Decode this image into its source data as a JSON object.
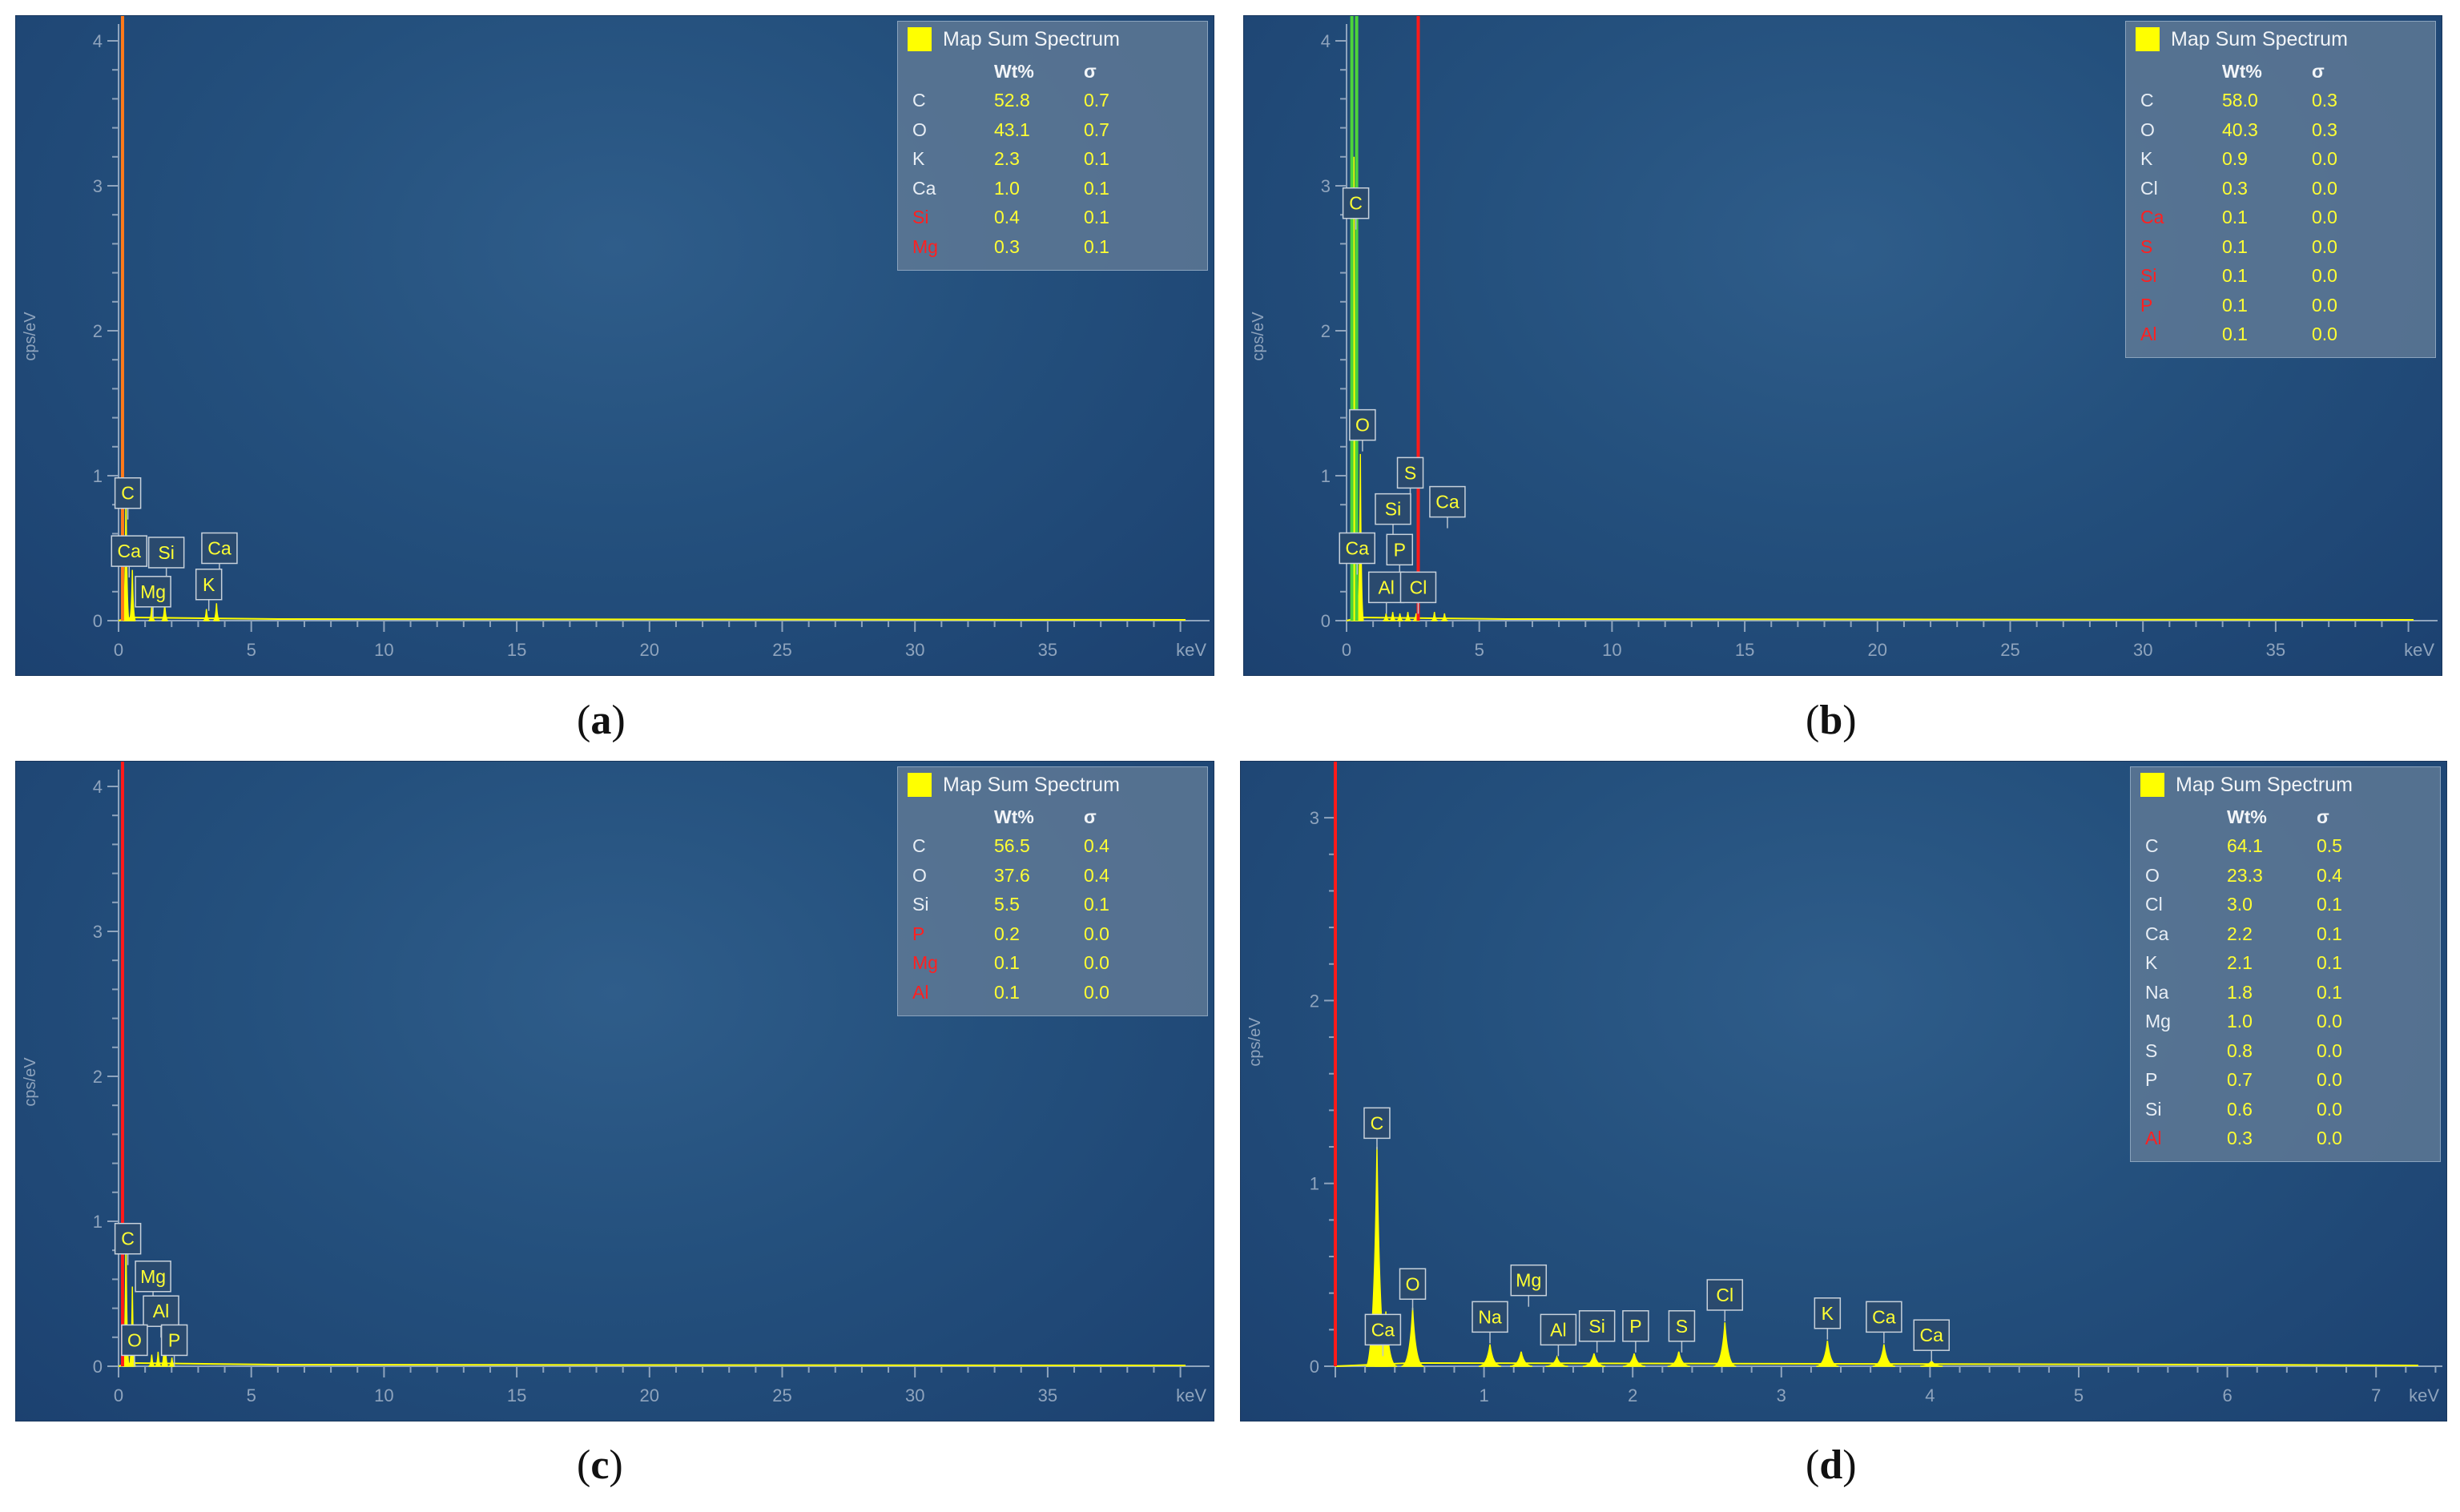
{
  "colors": {
    "background": "#24507d",
    "spectrum": "#ffff00",
    "axis": "#8fa4bd",
    "legend_red": "#ff2020",
    "marker_red": "#ff1a1a",
    "marker_orange": "#ff7a1a",
    "marker_green": "#4cd43a"
  },
  "chart_data": [
    {
      "type": "line",
      "panel_label": "a",
      "legend_title": "Map Sum Spectrum",
      "legend_headers": [
        "Wt%",
        "σ"
      ],
      "legend_rows": [
        {
          "el": "C",
          "wt": "52.8",
          "sigma": "0.7",
          "red": false
        },
        {
          "el": "O",
          "wt": "43.1",
          "sigma": "0.7",
          "red": false
        },
        {
          "el": "K",
          "wt": "2.3",
          "sigma": "0.1",
          "red": false
        },
        {
          "el": "Ca",
          "wt": "1.0",
          "sigma": "0.1",
          "red": false
        },
        {
          "el": "Si",
          "wt": "0.4",
          "sigma": "0.1",
          "red": true
        },
        {
          "el": "Mg",
          "wt": "0.3",
          "sigma": "0.1",
          "red": true
        }
      ],
      "ylabel": "cps/eV",
      "xunit": "keV",
      "xlim": [
        0,
        40
      ],
      "ylim": [
        0,
        4
      ],
      "xticks": [
        "0",
        "5",
        "10",
        "15",
        "20",
        "25",
        "30",
        "35"
      ],
      "yticks": [
        "0",
        "1",
        "2",
        "3",
        "4"
      ],
      "spectrum": [
        [
          0.28,
          0.95
        ],
        [
          0.52,
          0.35
        ],
        [
          1.25,
          0.1
        ],
        [
          1.74,
          0.12
        ],
        [
          3.31,
          0.08
        ],
        [
          3.69,
          0.12
        ]
      ],
      "markers": [
        {
          "x": 0.15,
          "color": "orange"
        }
      ],
      "peak_labels": [
        {
          "text": "C",
          "x": 0.35,
          "y": 0.88
        },
        {
          "text": "Ca",
          "x": 0.4,
          "y": 0.48
        },
        {
          "text": "Si",
          "x": 1.8,
          "y": 0.47
        },
        {
          "text": "Ca",
          "x": 3.8,
          "y": 0.5
        },
        {
          "text": "Mg",
          "x": 1.3,
          "y": 0.2
        },
        {
          "text": "K",
          "x": 3.4,
          "y": 0.25
        }
      ]
    },
    {
      "type": "line",
      "panel_label": "b",
      "legend_title": "Map Sum Spectrum",
      "legend_headers": [
        "Wt%",
        "σ"
      ],
      "legend_rows": [
        {
          "el": "C",
          "wt": "58.0",
          "sigma": "0.3",
          "red": false
        },
        {
          "el": "O",
          "wt": "40.3",
          "sigma": "0.3",
          "red": false
        },
        {
          "el": "K",
          "wt": "0.9",
          "sigma": "0.0",
          "red": false
        },
        {
          "el": "Cl",
          "wt": "0.3",
          "sigma": "0.0",
          "red": false
        },
        {
          "el": "Ca",
          "wt": "0.1",
          "sigma": "0.0",
          "red": true
        },
        {
          "el": "S",
          "wt": "0.1",
          "sigma": "0.0",
          "red": true
        },
        {
          "el": "Si",
          "wt": "0.1",
          "sigma": "0.0",
          "red": true
        },
        {
          "el": "P",
          "wt": "0.1",
          "sigma": "0.0",
          "red": true
        },
        {
          "el": "Al",
          "wt": "0.1",
          "sigma": "0.0",
          "red": true
        }
      ],
      "ylabel": "cps/eV",
      "xunit": "keV",
      "xlim": [
        0,
        40
      ],
      "ylim": [
        0,
        4
      ],
      "xticks": [
        "0",
        "5",
        "10",
        "15",
        "20",
        "25",
        "30",
        "35"
      ],
      "yticks": [
        "0",
        "1",
        "2",
        "3",
        "4"
      ],
      "spectrum": [
        [
          0.28,
          3.2
        ],
        [
          0.52,
          1.15
        ],
        [
          1.49,
          0.05
        ],
        [
          1.74,
          0.06
        ],
        [
          2.01,
          0.05
        ],
        [
          2.31,
          0.06
        ],
        [
          2.62,
          0.05
        ],
        [
          3.31,
          0.06
        ],
        [
          3.69,
          0.05
        ]
      ],
      "markers": [
        {
          "x": 0.2,
          "color": "green"
        },
        {
          "x": 0.38,
          "color": "green"
        },
        {
          "x": 2.7,
          "color": "red"
        }
      ],
      "peak_labels": [
        {
          "text": "C",
          "x": 0.35,
          "y": 2.88
        },
        {
          "text": "O",
          "x": 0.6,
          "y": 1.35
        },
        {
          "text": "S",
          "x": 2.4,
          "y": 1.02
        },
        {
          "text": "Ca",
          "x": 3.8,
          "y": 0.82
        },
        {
          "text": "Si",
          "x": 1.75,
          "y": 0.77
        },
        {
          "text": "Ca",
          "x": 0.4,
          "y": 0.5
        },
        {
          "text": "P",
          "x": 2.0,
          "y": 0.49
        },
        {
          "text": "Al",
          "x": 1.5,
          "y": 0.23
        },
        {
          "text": "Cl",
          "x": 2.7,
          "y": 0.23
        }
      ]
    },
    {
      "type": "line",
      "panel_label": "c",
      "legend_title": "Map Sum Spectrum",
      "legend_headers": [
        "Wt%",
        "σ"
      ],
      "legend_rows": [
        {
          "el": "C",
          "wt": "56.5",
          "sigma": "0.4",
          "red": false
        },
        {
          "el": "O",
          "wt": "37.6",
          "sigma": "0.4",
          "red": false
        },
        {
          "el": "Si",
          "wt": "5.5",
          "sigma": "0.1",
          "red": false
        },
        {
          "el": "P",
          "wt": "0.2",
          "sigma": "0.0",
          "red": true
        },
        {
          "el": "Mg",
          "wt": "0.1",
          "sigma": "0.0",
          "red": true
        },
        {
          "el": "Al",
          "wt": "0.1",
          "sigma": "0.0",
          "red": true
        }
      ],
      "ylabel": "cps/eV",
      "xunit": "keV",
      "xlim": [
        0,
        40
      ],
      "ylim": [
        0,
        4
      ],
      "xticks": [
        "0",
        "5",
        "10",
        "15",
        "20",
        "25",
        "30",
        "35"
      ],
      "yticks": [
        "0",
        "1",
        "2",
        "3",
        "4"
      ],
      "spectrum": [
        [
          0.28,
          0.95
        ],
        [
          0.52,
          0.55
        ],
        [
          1.25,
          0.08
        ],
        [
          1.49,
          0.1
        ],
        [
          1.74,
          0.3
        ],
        [
          2.01,
          0.06
        ]
      ],
      "markers": [
        {
          "x": 0.15,
          "color": "red"
        }
      ],
      "peak_labels": [
        {
          "text": "C",
          "x": 0.35,
          "y": 0.88
        },
        {
          "text": "Mg",
          "x": 1.3,
          "y": 0.62
        },
        {
          "text": "Al",
          "x": 1.6,
          "y": 0.38
        },
        {
          "text": "O",
          "x": 0.6,
          "y": 0.18
        },
        {
          "text": "P",
          "x": 2.1,
          "y": 0.18
        }
      ]
    },
    {
      "type": "line",
      "panel_label": "d",
      "legend_title": "Map Sum Spectrum",
      "legend_headers": [
        "Wt%",
        "σ"
      ],
      "legend_rows": [
        {
          "el": "C",
          "wt": "64.1",
          "sigma": "0.5",
          "red": false
        },
        {
          "el": "O",
          "wt": "23.3",
          "sigma": "0.4",
          "red": false
        },
        {
          "el": "Cl",
          "wt": "3.0",
          "sigma": "0.1",
          "red": false
        },
        {
          "el": "Ca",
          "wt": "2.2",
          "sigma": "0.1",
          "red": false
        },
        {
          "el": "K",
          "wt": "2.1",
          "sigma": "0.1",
          "red": false
        },
        {
          "el": "Na",
          "wt": "1.8",
          "sigma": "0.1",
          "red": false
        },
        {
          "el": "Mg",
          "wt": "1.0",
          "sigma": "0.0",
          "red": false
        },
        {
          "el": "S",
          "wt": "0.8",
          "sigma": "0.0",
          "red": false
        },
        {
          "el": "P",
          "wt": "0.7",
          "sigma": "0.0",
          "red": false
        },
        {
          "el": "Si",
          "wt": "0.6",
          "sigma": "0.0",
          "red": false
        },
        {
          "el": "Al",
          "wt": "0.3",
          "sigma": "0.0",
          "red": true
        }
      ],
      "ylabel": "cps/eV",
      "xunit": "keV",
      "xlim": [
        0,
        8
      ],
      "ylim": [
        0,
        3
      ],
      "xticks": [
        "1",
        "2",
        "3",
        "4",
        "5",
        "6",
        "7"
      ],
      "yticks": [
        "0",
        "1",
        "2",
        "3"
      ],
      "spectrum": [
        [
          0.28,
          1.2
        ],
        [
          0.34,
          0.3
        ],
        [
          0.52,
          0.32
        ],
        [
          1.04,
          0.12
        ],
        [
          1.25,
          0.08
        ],
        [
          1.49,
          0.05
        ],
        [
          1.74,
          0.07
        ],
        [
          2.01,
          0.07
        ],
        [
          2.31,
          0.08
        ],
        [
          2.62,
          0.24
        ],
        [
          3.31,
          0.14
        ],
        [
          3.69,
          0.12
        ],
        [
          4.01,
          0.03
        ]
      ],
      "markers": [
        {
          "x": 0.0,
          "color": "red"
        }
      ],
      "peak_labels": [
        {
          "text": "C",
          "x": 0.28,
          "y": 1.33
        },
        {
          "text": "O",
          "x": 0.52,
          "y": 0.45
        },
        {
          "text": "Ca",
          "x": 0.32,
          "y": 0.2
        },
        {
          "text": "Na",
          "x": 1.04,
          "y": 0.27
        },
        {
          "text": "Mg",
          "x": 1.3,
          "y": 0.47
        },
        {
          "text": "Al",
          "x": 1.5,
          "y": 0.2
        },
        {
          "text": "Si",
          "x": 1.76,
          "y": 0.22
        },
        {
          "text": "P",
          "x": 2.02,
          "y": 0.22
        },
        {
          "text": "S",
          "x": 2.33,
          "y": 0.22
        },
        {
          "text": "Cl",
          "x": 2.62,
          "y": 0.39
        },
        {
          "text": "K",
          "x": 3.31,
          "y": 0.29
        },
        {
          "text": "Ca",
          "x": 3.69,
          "y": 0.27
        },
        {
          "text": "Ca",
          "x": 4.01,
          "y": 0.17
        }
      ]
    }
  ]
}
